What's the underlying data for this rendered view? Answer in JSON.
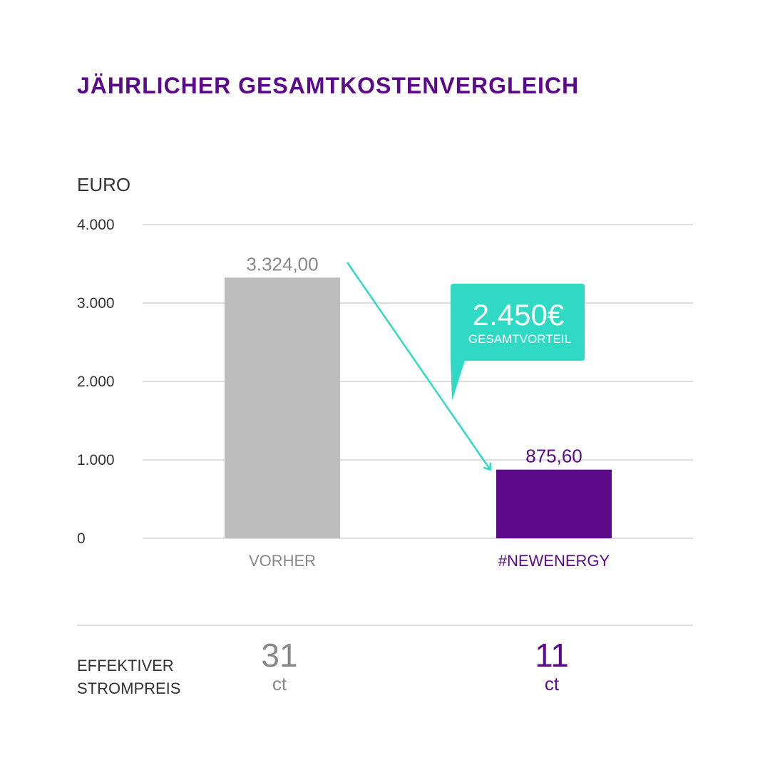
{
  "title": "JÄHRLICHER GESAMTKOSTENVERGLEICH",
  "colors": {
    "title": "#5c0a8a",
    "bar_before": "#bdbdbd",
    "bar_after": "#5c0a8a",
    "accent": "#2fd9c4",
    "grid": "#dddddd",
    "label_before": "#888888"
  },
  "chart_data": {
    "type": "bar",
    "ylabel": "EURO",
    "ylim": [
      0,
      4000
    ],
    "yticks": [
      0,
      1000,
      2000,
      3000,
      4000
    ],
    "ytick_labels": [
      "0",
      "1.000",
      "2.000",
      "3.000",
      "4.000"
    ],
    "categories": [
      "VORHER",
      "#NEWENERGY"
    ],
    "values": [
      3324.0,
      875.6
    ],
    "data_labels": [
      "3.324,00",
      "875,60"
    ],
    "grid": true,
    "annotation": {
      "value": "2.450€",
      "label": "GESAMTVORTEIL"
    }
  },
  "footer": {
    "label_line1": "EFFEKTIVER",
    "label_line2": "STROMPREIS",
    "prices": [
      {
        "value": "31",
        "unit": "ct"
      },
      {
        "value": "11",
        "unit": "ct"
      }
    ]
  }
}
